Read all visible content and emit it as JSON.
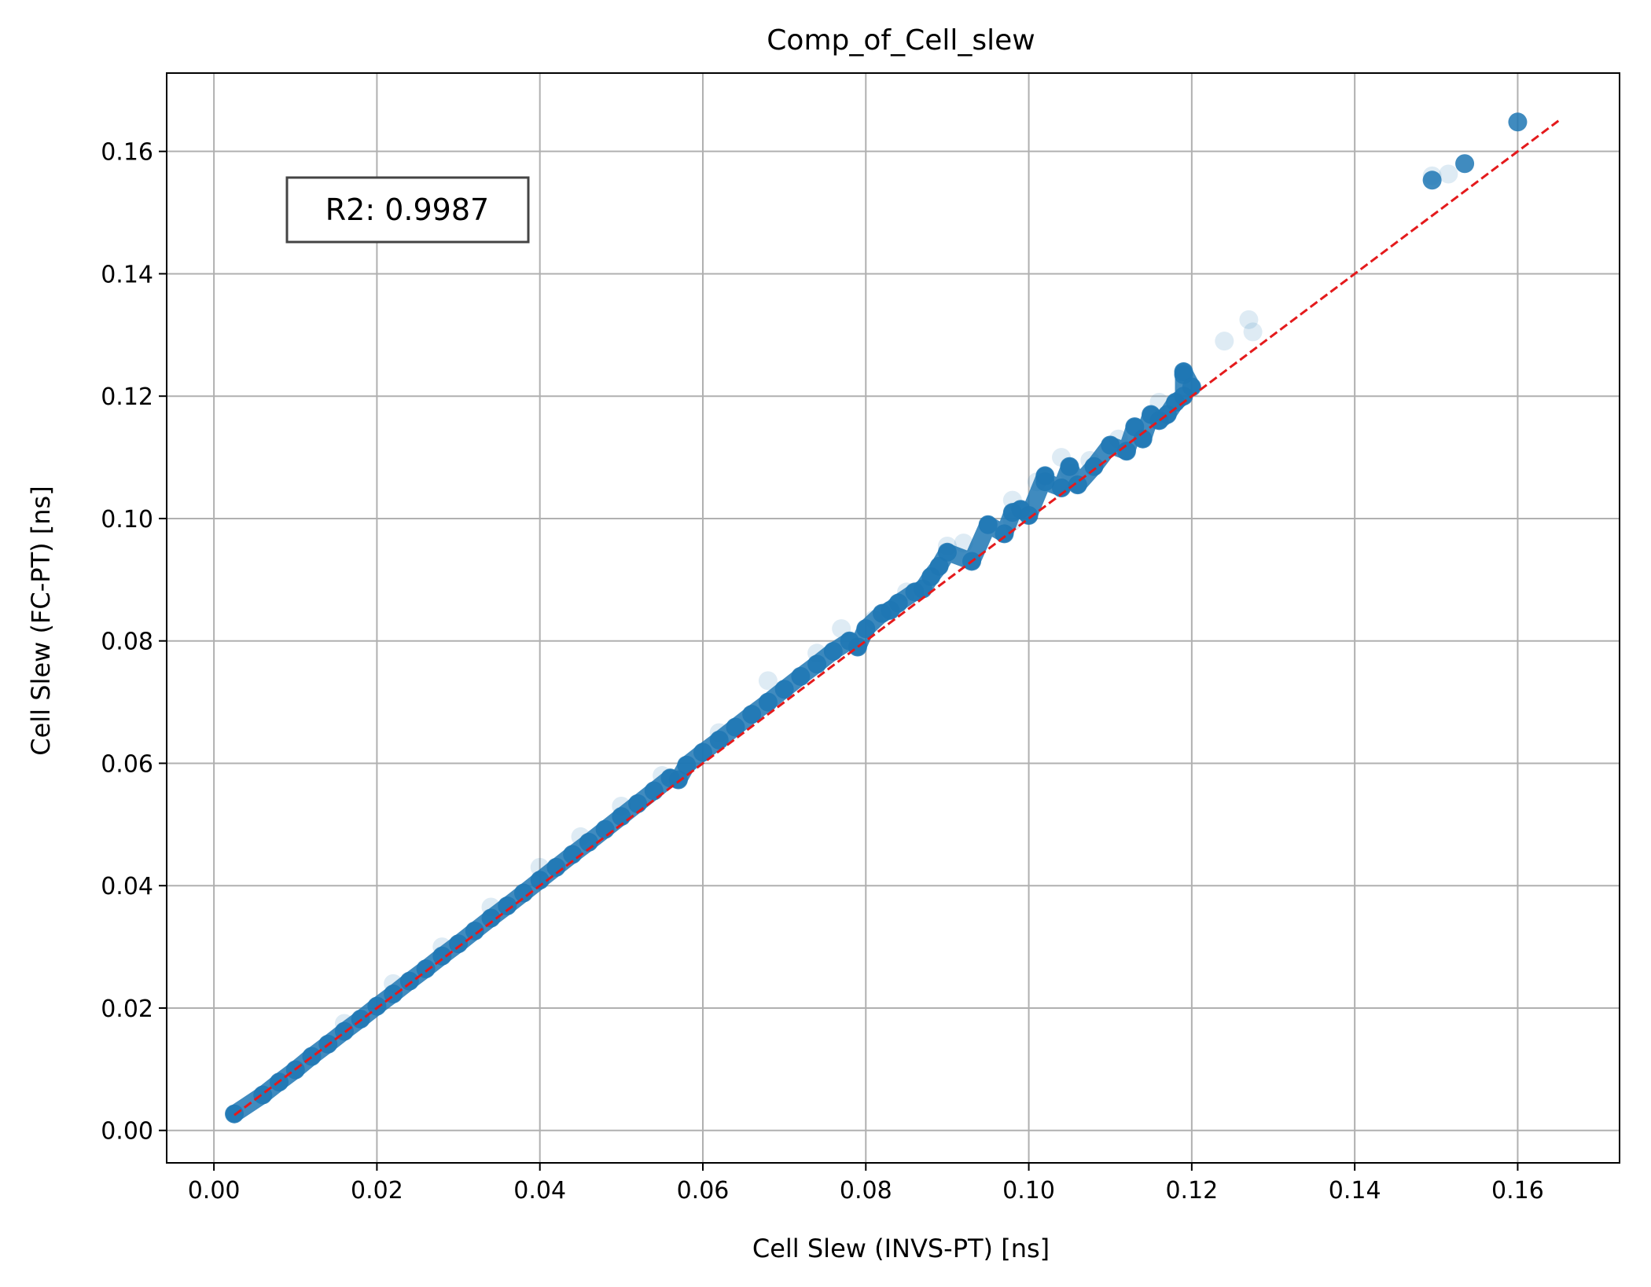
{
  "chart_data": {
    "type": "scatter",
    "title": "Comp_of_Cell_slew",
    "xlabel": "Cell Slew (INVS-PT) [ns]",
    "ylabel": "Cell Slew (FC-PT) [ns]",
    "xlim": [
      -0.0058,
      0.1725
    ],
    "ylim": [
      -0.0053,
      0.1728
    ],
    "xticks": [
      "0.00",
      "0.02",
      "0.04",
      "0.06",
      "0.08",
      "0.10",
      "0.12",
      "0.14",
      "0.16"
    ],
    "yticks": [
      "0.00",
      "0.02",
      "0.04",
      "0.06",
      "0.08",
      "0.10",
      "0.12",
      "0.14",
      "0.16"
    ],
    "grid": true,
    "annotation": "R2: 0.9987",
    "reference_line": {
      "x": [
        0.0025,
        0.165
      ],
      "y": [
        0.0025,
        0.165
      ],
      "color": "#e41a1c",
      "style": "dashed"
    },
    "point_color": "#1f77b4",
    "points": [
      [
        0.0025,
        0.0027
      ],
      [
        0.006,
        0.0058
      ],
      [
        0.008,
        0.0079
      ],
      [
        0.01,
        0.0099
      ],
      [
        0.012,
        0.0121
      ],
      [
        0.014,
        0.0141
      ],
      [
        0.016,
        0.0162
      ],
      [
        0.018,
        0.0182
      ],
      [
        0.02,
        0.0203
      ],
      [
        0.022,
        0.0223
      ],
      [
        0.024,
        0.0244
      ],
      [
        0.026,
        0.0264
      ],
      [
        0.028,
        0.0285
      ],
      [
        0.03,
        0.0305
      ],
      [
        0.032,
        0.0326
      ],
      [
        0.034,
        0.0347
      ],
      [
        0.036,
        0.0367
      ],
      [
        0.038,
        0.0388
      ],
      [
        0.04,
        0.0409
      ],
      [
        0.042,
        0.043
      ],
      [
        0.044,
        0.0451
      ],
      [
        0.046,
        0.0471
      ],
      [
        0.048,
        0.0492
      ],
      [
        0.05,
        0.0513
      ],
      [
        0.052,
        0.0534
      ],
      [
        0.054,
        0.0555
      ],
      [
        0.056,
        0.0576
      ],
      [
        0.057,
        0.0573
      ],
      [
        0.058,
        0.0597
      ],
      [
        0.06,
        0.0618
      ],
      [
        0.062,
        0.0638
      ],
      [
        0.064,
        0.0659
      ],
      [
        0.066,
        0.068
      ],
      [
        0.068,
        0.07
      ],
      [
        0.07,
        0.0721
      ],
      [
        0.072,
        0.0742
      ],
      [
        0.074,
        0.0762
      ],
      [
        0.076,
        0.0783
      ],
      [
        0.078,
        0.08
      ],
      [
        0.079,
        0.079
      ],
      [
        0.08,
        0.082
      ],
      [
        0.082,
        0.0845
      ],
      [
        0.083,
        0.085
      ],
      [
        0.084,
        0.0862
      ],
      [
        0.086,
        0.088
      ],
      [
        0.087,
        0.0885
      ],
      [
        0.088,
        0.0905
      ],
      [
        0.089,
        0.0922
      ],
      [
        0.09,
        0.0945
      ],
      [
        0.093,
        0.093
      ],
      [
        0.095,
        0.099
      ],
      [
        0.097,
        0.0975
      ],
      [
        0.098,
        0.101
      ],
      [
        0.099,
        0.1015
      ],
      [
        0.1,
        0.1005
      ],
      [
        0.102,
        0.107
      ],
      [
        0.102,
        0.106
      ],
      [
        0.104,
        0.105
      ],
      [
        0.105,
        0.1085
      ],
      [
        0.106,
        0.1055
      ],
      [
        0.108,
        0.1085
      ],
      [
        0.11,
        0.112
      ],
      [
        0.112,
        0.111
      ],
      [
        0.113,
        0.115
      ],
      [
        0.114,
        0.113
      ],
      [
        0.115,
        0.117
      ],
      [
        0.116,
        0.116
      ],
      [
        0.117,
        0.117
      ],
      [
        0.118,
        0.119
      ],
      [
        0.119,
        0.12
      ],
      [
        0.119,
        0.1235
      ],
      [
        0.119,
        0.124
      ],
      [
        0.12,
        0.1215
      ],
      [
        0.1495,
        0.1553
      ],
      [
        0.1535,
        0.158
      ],
      [
        0.16,
        0.1648
      ]
    ],
    "faint_points": [
      [
        0.101,
        0.106
      ],
      [
        0.104,
        0.11
      ],
      [
        0.1075,
        0.1095
      ],
      [
        0.111,
        0.113
      ],
      [
        0.098,
        0.103
      ],
      [
        0.092,
        0.096
      ],
      [
        0.09,
        0.0955
      ],
      [
        0.085,
        0.088
      ],
      [
        0.081,
        0.0835
      ],
      [
        0.077,
        0.082
      ],
      [
        0.074,
        0.078
      ],
      [
        0.068,
        0.0735
      ],
      [
        0.062,
        0.065
      ],
      [
        0.055,
        0.058
      ],
      [
        0.05,
        0.053
      ],
      [
        0.045,
        0.048
      ],
      [
        0.04,
        0.043
      ],
      [
        0.034,
        0.0365
      ],
      [
        0.028,
        0.03
      ],
      [
        0.022,
        0.024
      ],
      [
        0.016,
        0.0175
      ],
      [
        0.124,
        0.129
      ],
      [
        0.127,
        0.1325
      ],
      [
        0.1275,
        0.1305
      ],
      [
        0.1515,
        0.1563
      ],
      [
        0.1495,
        0.156
      ],
      [
        0.116,
        0.119
      ],
      [
        0.105,
        0.1075
      ],
      [
        0.098,
        0.0995
      ]
    ]
  }
}
